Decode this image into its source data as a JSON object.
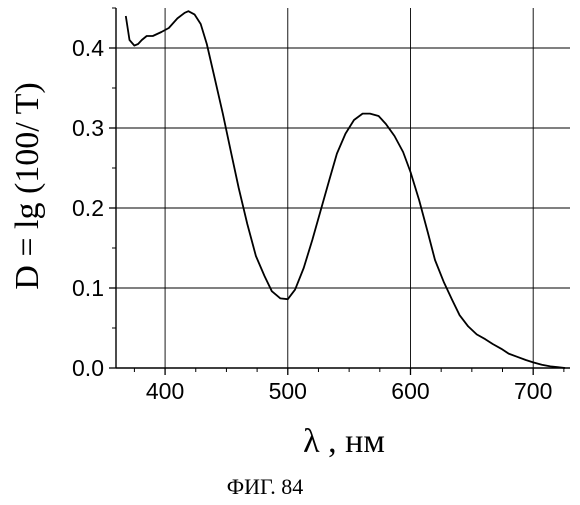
{
  "chart_data": {
    "type": "line",
    "xlabel": "λ , нм",
    "ylabel": "D = lg (100/ T)",
    "caption": "ФИГ. 84",
    "xlim": [
      360,
      730
    ],
    "ylim": [
      0.0,
      0.45
    ],
    "xticks": [
      400,
      500,
      600,
      700
    ],
    "xtick_labels": [
      "400",
      "500",
      "600",
      "700"
    ],
    "yticks": [
      0.0,
      0.1,
      0.2,
      0.3,
      0.4
    ],
    "ytick_labels": [
      "0.0",
      "0.1",
      "0.2",
      "0.3",
      "0.4"
    ],
    "grid": true,
    "series": [
      {
        "x": [
          368,
          371,
          375,
          378,
          381,
          385,
          390,
          397,
          403,
          410,
          416,
          419,
          424,
          429,
          434,
          440,
          447,
          454,
          460,
          467,
          474,
          481,
          487,
          494,
          500,
          506,
          513,
          520,
          527,
          534,
          540,
          547,
          554,
          561,
          567,
          574,
          580,
          587,
          594,
          600,
          607,
          614,
          620,
          627,
          634,
          640,
          647,
          654,
          661,
          667,
          674,
          680,
          687,
          694,
          700,
          707,
          714,
          720,
          726
        ],
        "y": [
          0.44,
          0.41,
          0.403,
          0.405,
          0.41,
          0.415,
          0.415,
          0.42,
          0.425,
          0.437,
          0.444,
          0.446,
          0.442,
          0.43,
          0.405,
          0.365,
          0.318,
          0.268,
          0.225,
          0.18,
          0.14,
          0.115,
          0.096,
          0.087,
          0.086,
          0.098,
          0.125,
          0.16,
          0.198,
          0.236,
          0.268,
          0.293,
          0.31,
          0.318,
          0.318,
          0.315,
          0.305,
          0.29,
          0.27,
          0.245,
          0.21,
          0.17,
          0.135,
          0.108,
          0.085,
          0.066,
          0.052,
          0.042,
          0.036,
          0.03,
          0.024,
          0.018,
          0.014,
          0.01,
          0.007,
          0.004,
          0.002,
          0.001,
          0.0
        ]
      }
    ]
  }
}
